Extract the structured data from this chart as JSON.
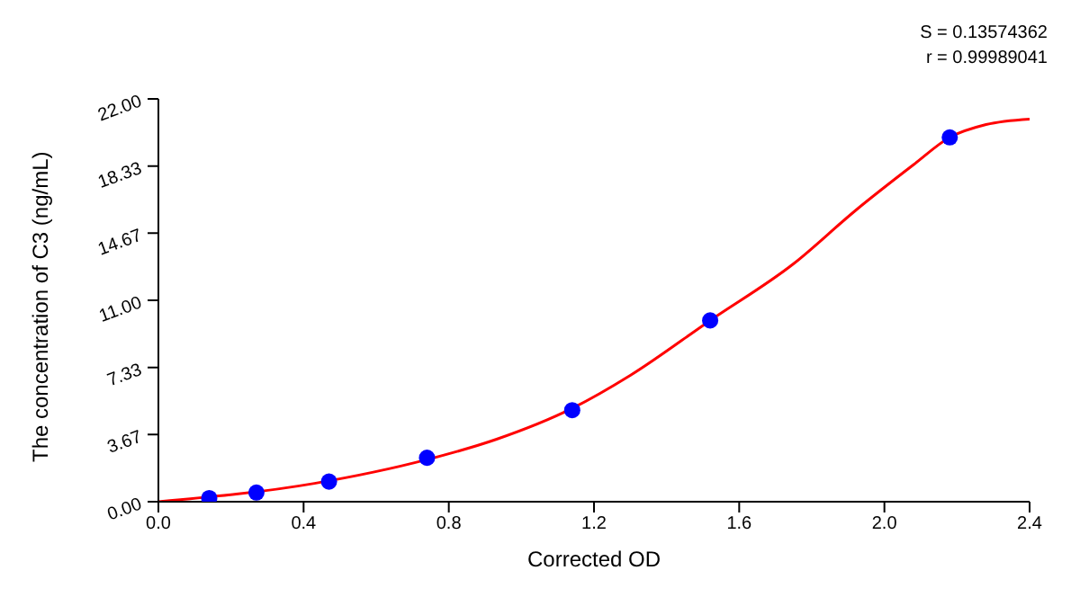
{
  "chart_data": {
    "type": "scatter",
    "xlabel": "Corrected OD",
    "ylabel": "The concentration of C3 (ng/mL)",
    "annotations": [
      "S = 0.13574362",
      "r = 0.99989041"
    ],
    "xlim": [
      0,
      2.4
    ],
    "xticks": [
      {
        "value": 0,
        "label": "0.0"
      },
      0.4,
      0.8,
      1.2,
      1.6,
      {
        "value": 2,
        "label": "2.0"
      },
      2.4
    ],
    "ylim": [
      0,
      22
    ],
    "yticks": [
      {
        "value": 0,
        "label": "0.00"
      },
      {
        "value": 3.67,
        "label": "3.67"
      },
      {
        "value": 7.33,
        "label": "7.33"
      },
      {
        "value": 11,
        "label": "11.00"
      },
      {
        "value": 14.67,
        "label": "14.67"
      },
      {
        "value": 18.33,
        "label": "18.33"
      },
      {
        "value": 22,
        "label": "22.00"
      }
    ],
    "grid": false,
    "marker": "circle",
    "series": [
      {
        "type": "line",
        "color": "#ff0000",
        "marker": "none",
        "x": [
          0,
          0.43,
          0.74,
          0.93,
          1.14,
          1.3,
          1.52,
          1.75,
          1.92,
          2.08,
          2.18,
          2.28,
          2.4
        ],
        "values": [
          0,
          1.0,
          2.3,
          3.4,
          5.1,
          6.9,
          9.9,
          13.0,
          15.9,
          18.4,
          19.9,
          20.6,
          20.9
        ]
      },
      {
        "color": "#0000ff",
        "x": [
          0.14,
          0.27,
          0.47,
          0.74,
          1.14,
          1.52,
          2.18
        ],
        "values": [
          0.2,
          0.5,
          1.1,
          2.4,
          5.0,
          9.9,
          19.9
        ]
      }
    ]
  }
}
